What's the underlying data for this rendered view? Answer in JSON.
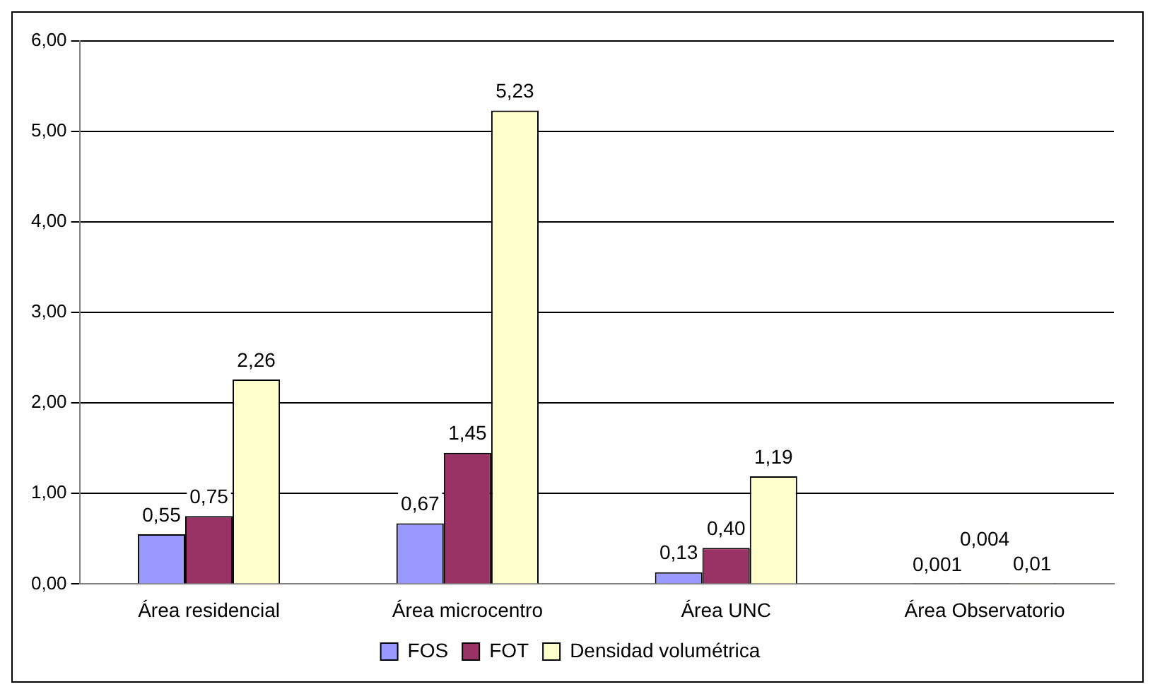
{
  "chart_data": {
    "type": "bar",
    "categories": [
      "Área residencial",
      "Área microcentro",
      "Área UNC",
      "Área Observatorio"
    ],
    "series": [
      {
        "name": "FOS",
        "color": "#9999ff",
        "values": [
          0.55,
          0.67,
          0.13,
          0.001
        ],
        "value_labels": [
          "0,55",
          "0,67",
          "0,13",
          "0,001"
        ]
      },
      {
        "name": "FOT",
        "color": "#993366",
        "values": [
          0.75,
          1.45,
          0.4,
          0.004
        ],
        "value_labels": [
          "0,75",
          "1,45",
          "0,40",
          "0,004"
        ]
      },
      {
        "name": "Densidad volumétrica",
        "color": "#ffffcc",
        "values": [
          2.26,
          5.23,
          1.19,
          0.01
        ],
        "value_labels": [
          "2,26",
          "5,23",
          "1,19",
          "0,01"
        ]
      }
    ],
    "ylim": [
      0,
      6
    ],
    "yticks": [
      {
        "value": 0,
        "label": "0,00"
      },
      {
        "value": 1,
        "label": "1,00"
      },
      {
        "value": 2,
        "label": "2,00"
      },
      {
        "value": 3,
        "label": "3,00"
      },
      {
        "value": 4,
        "label": "4,00"
      },
      {
        "value": 5,
        "label": "5,00"
      },
      {
        "value": 6,
        "label": "6,00"
      }
    ],
    "grid": "y",
    "legend": "bottom"
  }
}
